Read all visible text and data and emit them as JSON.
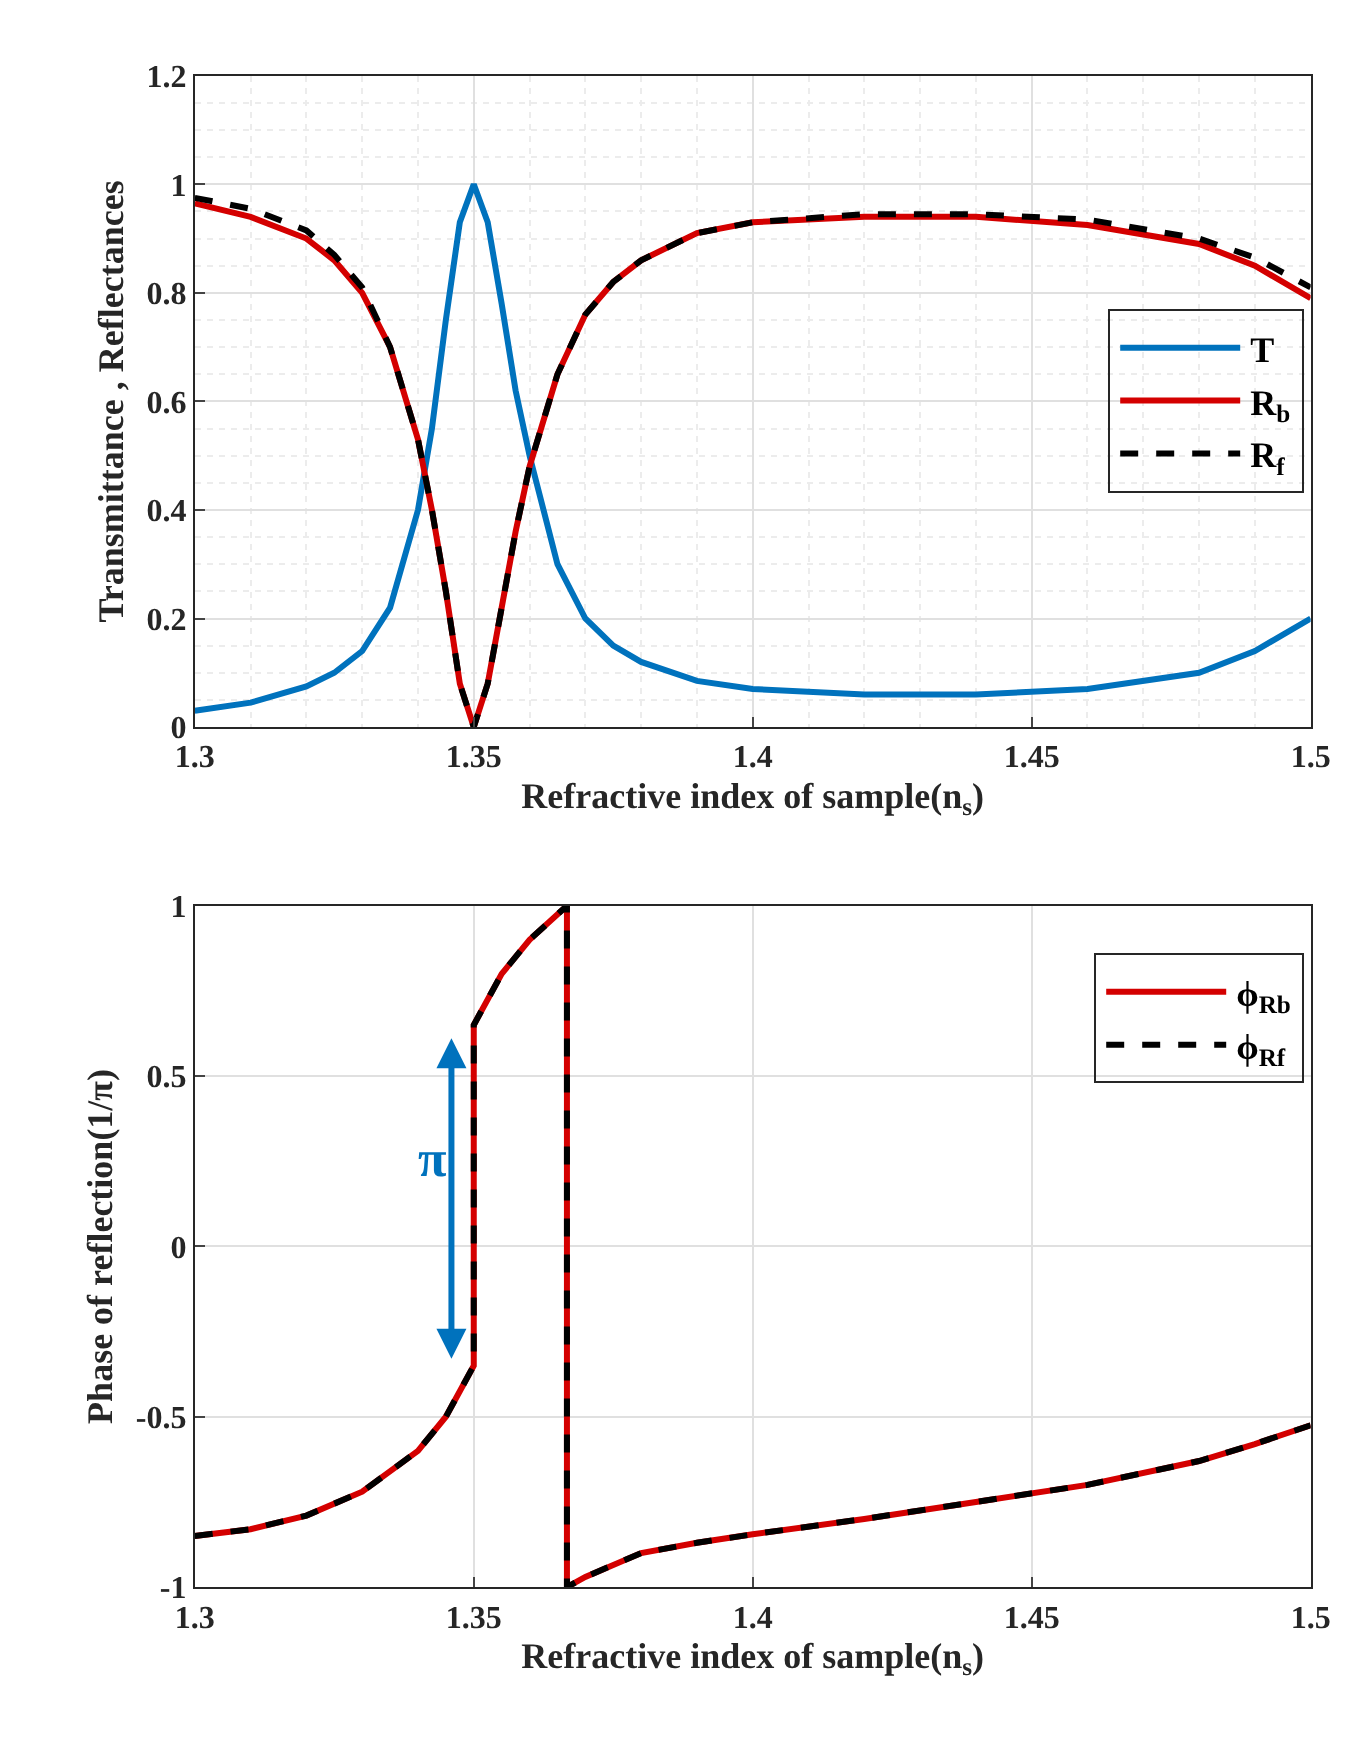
{
  "chart_data": [
    {
      "type": "line",
      "xlabel": "Refractive index of sample(n$_{s}$)",
      "ylabel": "Transmittance , Reflectances",
      "xlim": [
        1.3,
        1.5
      ],
      "xticks": [
        1.3,
        1.35,
        1.4,
        1.45,
        1.5
      ],
      "ylim": [
        0,
        1.2
      ],
      "yticks": [
        0,
        0.2,
        0.4,
        0.6,
        0.8,
        1,
        1.2
      ],
      "grid": true,
      "legend": "right",
      "x": [
        1.3,
        1.31,
        1.32,
        1.325,
        1.33,
        1.335,
        1.34,
        1.3425,
        1.345,
        1.3475,
        1.35,
        1.3525,
        1.355,
        1.3575,
        1.36,
        1.365,
        1.37,
        1.375,
        1.38,
        1.39,
        1.4,
        1.42,
        1.44,
        1.46,
        1.48,
        1.49,
        1.5
      ],
      "series": [
        {
          "name": "T",
          "color": "#0072bd",
          "line_style": "solid",
          "values": [
            0.03,
            0.045,
            0.075,
            0.1,
            0.14,
            0.22,
            0.4,
            0.55,
            0.75,
            0.93,
            1.0,
            0.93,
            0.78,
            0.62,
            0.5,
            0.3,
            0.2,
            0.15,
            0.12,
            0.085,
            0.07,
            0.06,
            0.06,
            0.07,
            0.1,
            0.14,
            0.2
          ]
        },
        {
          "name": "R$_{b}$",
          "color": "#d40000",
          "line_style": "solid",
          "values": [
            0.965,
            0.94,
            0.9,
            0.86,
            0.8,
            0.7,
            0.53,
            0.4,
            0.25,
            0.08,
            0.0,
            0.08,
            0.22,
            0.36,
            0.48,
            0.65,
            0.76,
            0.82,
            0.86,
            0.91,
            0.93,
            0.94,
            0.94,
            0.925,
            0.89,
            0.85,
            0.79
          ]
        },
        {
          "name": "R$_{f}$",
          "color": "#000000",
          "line_style": "dashed",
          "values": [
            0.975,
            0.955,
            0.915,
            0.87,
            0.81,
            0.7,
            0.53,
            0.4,
            0.25,
            0.08,
            0.0,
            0.08,
            0.22,
            0.36,
            0.48,
            0.65,
            0.76,
            0.82,
            0.86,
            0.91,
            0.93,
            0.945,
            0.945,
            0.935,
            0.9,
            0.865,
            0.81
          ]
        }
      ]
    },
    {
      "type": "line",
      "xlabel": "Refractive index of sample(n$_{s}$)",
      "ylabel": "Phase of reflection(1/π)",
      "xlim": [
        1.3,
        1.5
      ],
      "xticks": [
        1.3,
        1.35,
        1.4,
        1.45,
        1.5
      ],
      "ylim": [
        -1,
        1
      ],
      "yticks": [
        -1,
        -0.5,
        0,
        0.5,
        1
      ],
      "grid": true,
      "legend": "top right",
      "annotations": [
        "π"
      ],
      "x": [
        1.3,
        1.31,
        1.32,
        1.33,
        1.34,
        1.345,
        1.35,
        1.35,
        1.355,
        1.36,
        1.3667,
        1.3667,
        1.37,
        1.38,
        1.39,
        1.4,
        1.42,
        1.44,
        1.46,
        1.48,
        1.49,
        1.5
      ],
      "series": [
        {
          "name": "ϕ$_{Rb}$",
          "color": "#d40000",
          "line_style": "solid",
          "values": [
            -0.85,
            -0.83,
            -0.79,
            -0.72,
            -0.6,
            -0.5,
            -0.35,
            0.65,
            0.8,
            0.9,
            1.0,
            -1.0,
            -0.97,
            -0.9,
            -0.87,
            -0.845,
            -0.8,
            -0.75,
            -0.7,
            -0.63,
            -0.58,
            -0.525
          ]
        },
        {
          "name": "ϕ$_{Rf}$",
          "color": "#000000",
          "line_style": "dashed",
          "values": [
            -0.85,
            -0.83,
            -0.79,
            -0.72,
            -0.6,
            -0.5,
            -0.35,
            0.65,
            0.8,
            0.9,
            1.0,
            -1.0,
            -0.97,
            -0.9,
            -0.87,
            -0.845,
            -0.8,
            -0.75,
            -0.7,
            -0.63,
            -0.58,
            -0.525
          ]
        }
      ]
    }
  ]
}
